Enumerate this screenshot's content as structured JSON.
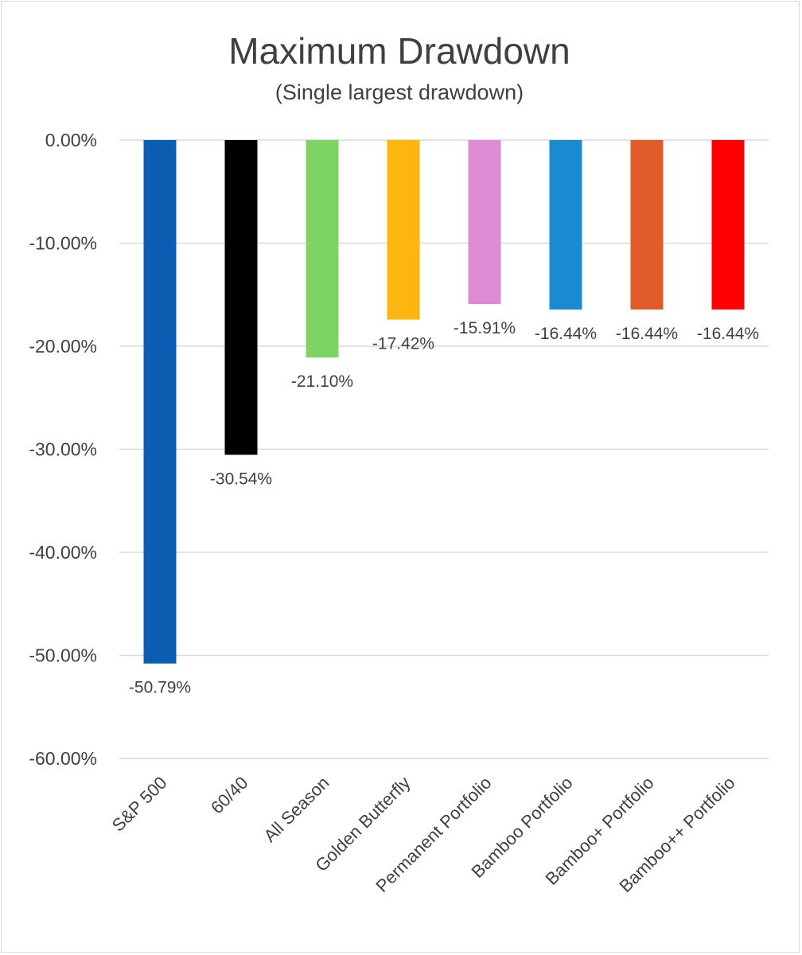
{
  "chart_data": {
    "type": "bar",
    "title": "Maximum Drawdown",
    "subtitle": "(Single largest drawdown)",
    "categories": [
      "S&P 500",
      "60/40",
      "All Season",
      "Golden Butterfly",
      "Permanent Portfolio",
      "Bamboo Portfolio",
      "Bamboo+ Portfolio",
      "Bamboo++ Portfolio"
    ],
    "values": [
      -50.79,
      -30.54,
      -21.1,
      -17.42,
      -15.91,
      -16.44,
      -16.44,
      -16.44
    ],
    "data_labels": [
      "-50.79%",
      "-30.54%",
      "-21.10%",
      "-17.42%",
      "-15.91%",
      "-16.44%",
      "-16.44%",
      "-16.44%"
    ],
    "colors": [
      "#0b5cb3",
      "#000000",
      "#7ed462",
      "#fdb50f",
      "#de8bd6",
      "#1a8bd0",
      "#e05a2a",
      "#ff0000"
    ],
    "ylim": [
      -60,
      0
    ],
    "yticks": [
      0,
      -10,
      -20,
      -30,
      -40,
      -50,
      -60
    ],
    "ytick_labels": [
      "0.00%",
      "-10.00%",
      "-20.00%",
      "-30.00%",
      "-40.00%",
      "-50.00%",
      "-60.00%"
    ],
    "grid": true,
    "legend": "none",
    "xlabel": "",
    "ylabel": ""
  }
}
